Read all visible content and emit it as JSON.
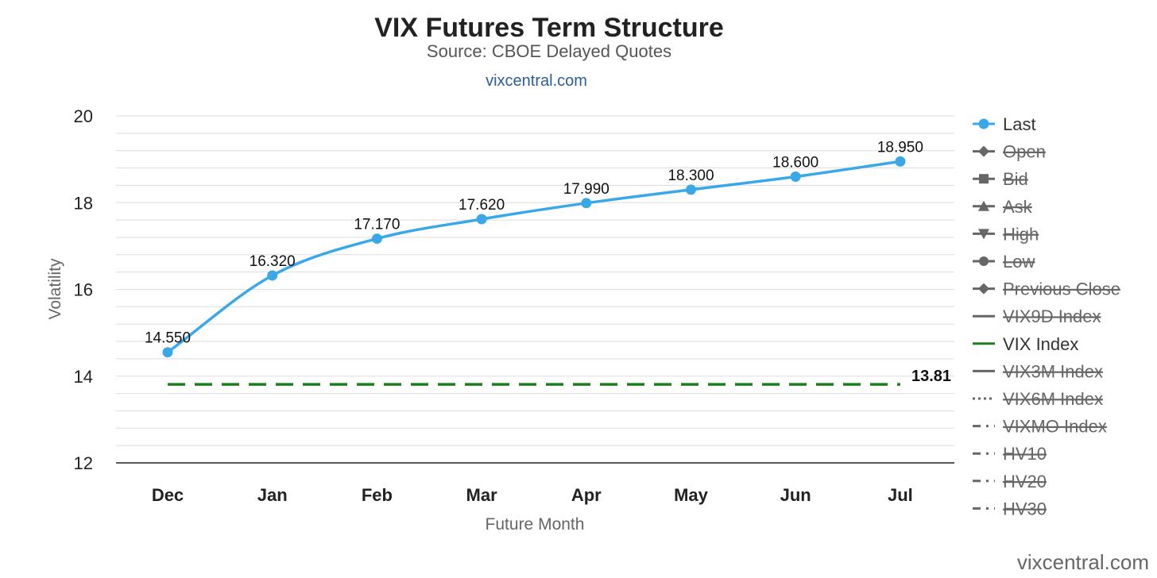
{
  "chart_data": {
    "type": "line",
    "title": "VIX Futures Term Structure",
    "subtitle": "Source: CBOE Delayed Quotes",
    "link_text": "vixcentral.com",
    "credit": "vixcentral.com",
    "xlabel": "Future Month",
    "ylabel": "Volatility",
    "ylim": [
      12,
      20
    ],
    "yticks": [
      "12",
      "14",
      "16",
      "18",
      "20"
    ],
    "grid": true,
    "legend_position": "right",
    "categories": [
      "Dec",
      "Jan",
      "Feb",
      "Mar",
      "Apr",
      "May",
      "Jun",
      "Jul"
    ],
    "series": [
      {
        "name": "Last",
        "values": [
          14.55,
          16.32,
          17.17,
          17.62,
          17.99,
          18.3,
          18.6,
          18.95
        ],
        "labels": [
          "14.550",
          "16.320",
          "17.170",
          "17.620",
          "17.990",
          "18.300",
          "18.600",
          "18.950"
        ],
        "color": "#3aa8e8"
      },
      {
        "name": "VIX Index",
        "value": 13.81,
        "label": "13.81",
        "color": "#1e7d1e",
        "style": "dashed"
      }
    ],
    "legend": [
      {
        "name": "Last",
        "visible": true,
        "symbol": "circle-line",
        "color": "#3aa8e8"
      },
      {
        "name": "Open",
        "visible": false,
        "symbol": "diamond-line",
        "color": "#666666"
      },
      {
        "name": "Bid",
        "visible": false,
        "symbol": "square-line",
        "color": "#666666"
      },
      {
        "name": "Ask",
        "visible": false,
        "symbol": "triangle-line",
        "color": "#666666"
      },
      {
        "name": "High",
        "visible": false,
        "symbol": "triangle-down-line",
        "color": "#666666"
      },
      {
        "name": "Low",
        "visible": false,
        "symbol": "circle-line",
        "color": "#666666"
      },
      {
        "name": "Previous Close",
        "visible": false,
        "symbol": "diamond-line",
        "color": "#666666"
      },
      {
        "name": "VIX9D Index",
        "visible": false,
        "symbol": "solid",
        "color": "#666666"
      },
      {
        "name": "VIX Index",
        "visible": true,
        "symbol": "solid",
        "color": "#1e7d1e"
      },
      {
        "name": "VIX3M Index",
        "visible": false,
        "symbol": "solid",
        "color": "#666666"
      },
      {
        "name": "VIX6M Index",
        "visible": false,
        "symbol": "dotted",
        "color": "#666666"
      },
      {
        "name": "VIXMO Index",
        "visible": false,
        "symbol": "dashdot",
        "color": "#666666"
      },
      {
        "name": "HV10",
        "visible": false,
        "symbol": "dashdot",
        "color": "#666666"
      },
      {
        "name": "HV20",
        "visible": false,
        "symbol": "dashdot",
        "color": "#666666"
      },
      {
        "name": "HV30",
        "visible": false,
        "symbol": "dashdot",
        "color": "#666666"
      }
    ]
  }
}
